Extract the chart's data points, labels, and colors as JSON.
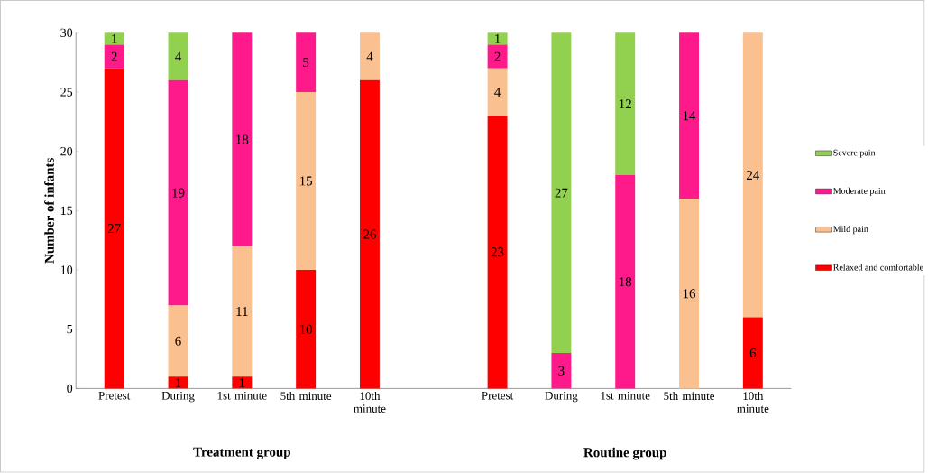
{
  "chart_data": {
    "type": "bar",
    "stacked": true,
    "ylabel": "Number of infants",
    "categories": [
      "Pretest",
      "During",
      "1st minute",
      "5th minute",
      "10th minute",
      null,
      "Pretest",
      "During",
      "1st minute",
      "5th minute",
      "10th minute"
    ],
    "series": [
      {
        "name": "Relaxed and comfortable",
        "color": "#ff0000",
        "values": [
          27,
          1,
          1,
          10,
          26,
          null,
          23,
          0,
          0,
          0,
          6
        ],
        "value_labels": [
          "27",
          "1",
          "1",
          "10",
          "26",
          null,
          "23",
          null,
          null,
          null,
          "6"
        ]
      },
      {
        "name": "Mild pain",
        "color": "#fac090",
        "values": [
          0,
          6,
          11,
          15,
          4,
          null,
          4,
          0,
          0,
          16,
          24
        ],
        "value_labels": [
          null,
          "6",
          "11",
          "15",
          "4",
          null,
          "4",
          null,
          null,
          "16",
          "24"
        ]
      },
      {
        "name": "Moderate pain",
        "color": "#ff1a8c",
        "values": [
          2,
          19,
          18,
          5,
          0,
          null,
          2,
          3,
          18,
          14,
          0
        ],
        "value_labels": [
          "2",
          "19",
          "18",
          "5",
          null,
          null,
          "2",
          "3",
          "18",
          "14",
          null
        ]
      },
      {
        "name": "Severe pain",
        "color": "#92d050",
        "values": [
          1,
          4,
          0,
          0,
          0,
          null,
          1,
          27,
          12,
          0,
          0
        ],
        "value_labels": [
          "1",
          "4",
          null,
          null,
          null,
          null,
          "1",
          "27",
          "12",
          null,
          null
        ]
      }
    ],
    "ylim": [
      0,
      30
    ],
    "yticks": [
      0,
      5,
      10,
      15,
      20,
      25,
      30
    ],
    "legend": "right",
    "annotations": [
      "Treatment group",
      "Routine group"
    ]
  }
}
